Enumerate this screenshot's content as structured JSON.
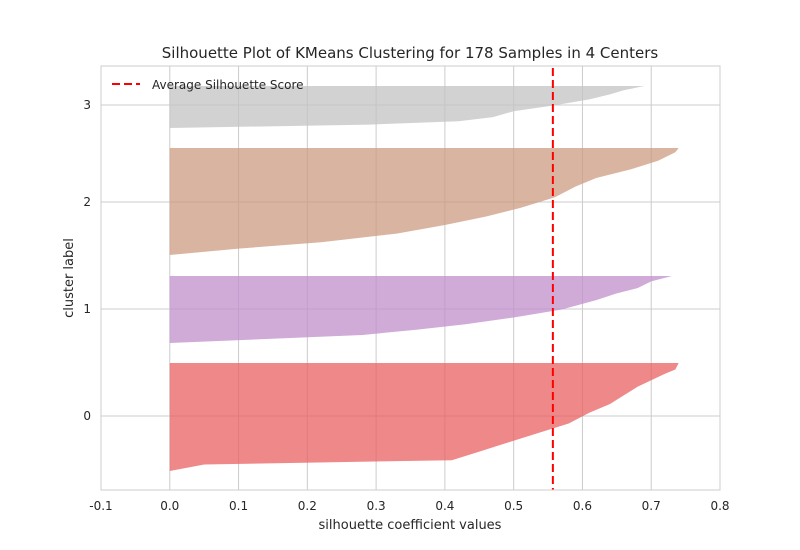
{
  "chart_data": {
    "type": "area",
    "title": "Silhouette Plot of KMeans Clustering for 178 Samples in 4 Centers",
    "xlabel": "silhouette coefficient values",
    "ylabel": "cluster label",
    "xlim": [
      -0.1,
      0.8
    ],
    "xticks": [
      "-0.1",
      "0.0",
      "0.1",
      "0.2",
      "0.3",
      "0.4",
      "0.5",
      "0.6",
      "0.7",
      "0.8"
    ],
    "yticks": [
      "0",
      "1",
      "2",
      "3"
    ],
    "grid": true,
    "legend": {
      "placement": "top-left",
      "entries": [
        "Average Silhouette Score"
      ]
    },
    "average_silhouette_score": 0.557,
    "series": [
      {
        "label": "0",
        "color": "#ea6060",
        "max_coefficient": 0.74,
        "min_coefficient": 0.0,
        "profile": [
          [
            0.0,
            0.74
          ],
          [
            0.06,
            0.735
          ],
          [
            0.1,
            0.72
          ],
          [
            0.16,
            0.7
          ],
          [
            0.22,
            0.68
          ],
          [
            0.3,
            0.66
          ],
          [
            0.38,
            0.64
          ],
          [
            0.46,
            0.61
          ],
          [
            0.56,
            0.58
          ],
          [
            0.66,
            0.53
          ],
          [
            0.74,
            0.49
          ],
          [
            0.82,
            0.45
          ],
          [
            0.9,
            0.41
          ],
          [
            0.94,
            0.05
          ],
          [
            1.0,
            0.0
          ]
        ]
      },
      {
        "label": "1",
        "color": "#c08fcb",
        "max_coefficient": 0.73,
        "min_coefficient": 0.0,
        "profile": [
          [
            0.0,
            0.73
          ],
          [
            0.08,
            0.7
          ],
          [
            0.18,
            0.68
          ],
          [
            0.26,
            0.65
          ],
          [
            0.36,
            0.62
          ],
          [
            0.5,
            0.57
          ],
          [
            0.62,
            0.5
          ],
          [
            0.72,
            0.43
          ],
          [
            0.8,
            0.36
          ],
          [
            0.88,
            0.28
          ],
          [
            0.94,
            0.14
          ],
          [
            1.0,
            0.0
          ]
        ]
      },
      {
        "label": "2",
        "color": "#cc9b80",
        "max_coefficient": 0.74,
        "min_coefficient": 0.0,
        "profile": [
          [
            0.0,
            0.74
          ],
          [
            0.04,
            0.735
          ],
          [
            0.12,
            0.71
          ],
          [
            0.2,
            0.67
          ],
          [
            0.28,
            0.62
          ],
          [
            0.36,
            0.59
          ],
          [
            0.46,
            0.56
          ],
          [
            0.56,
            0.51
          ],
          [
            0.64,
            0.46
          ],
          [
            0.72,
            0.4
          ],
          [
            0.8,
            0.33
          ],
          [
            0.88,
            0.22
          ],
          [
            0.94,
            0.1
          ],
          [
            1.0,
            0.0
          ]
        ]
      },
      {
        "label": "3",
        "color": "#c3c3c3",
        "max_coefficient": 0.69,
        "min_coefficient": 0.0,
        "profile": [
          [
            0.0,
            0.69
          ],
          [
            0.1,
            0.66
          ],
          [
            0.2,
            0.64
          ],
          [
            0.32,
            0.61
          ],
          [
            0.46,
            0.56
          ],
          [
            0.6,
            0.5
          ],
          [
            0.74,
            0.47
          ],
          [
            0.84,
            0.42
          ],
          [
            0.92,
            0.29
          ],
          [
            1.0,
            0.0
          ]
        ]
      }
    ]
  }
}
